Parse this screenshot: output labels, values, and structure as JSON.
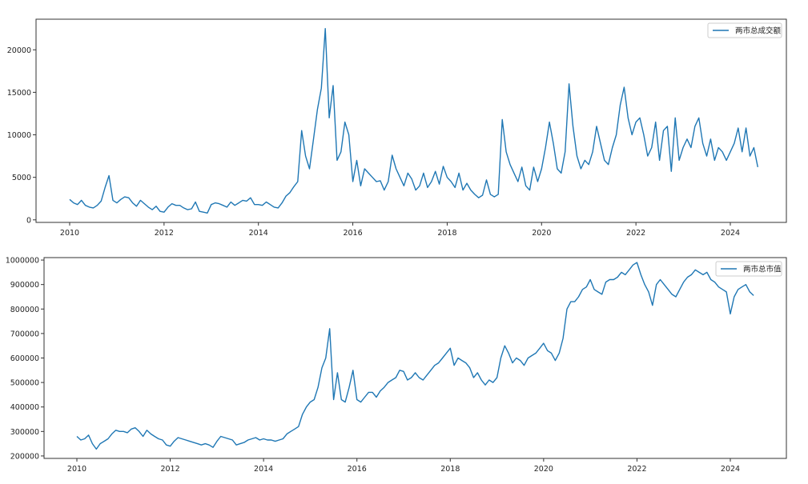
{
  "chart_data": [
    {
      "type": "line",
      "title": "",
      "xlabel": "",
      "ylabel": "",
      "xlim": [
        2009.3,
        2025.2
      ],
      "ylim": [
        -300,
        23600
      ],
      "x_ticks": [
        "2010",
        "2012",
        "2014",
        "2016",
        "2018",
        "2020",
        "2022",
        "2024"
      ],
      "y_ticks": [
        "0",
        "5000",
        "10000",
        "15000",
        "20000"
      ],
      "legend_position": "upper-right",
      "color": "#1f77b4",
      "series": [
        {
          "name": "两市总成交额",
          "x_start": 2010.0,
          "x_step_years": 0.08333,
          "values": [
            2400,
            2000,
            1800,
            2300,
            1700,
            1500,
            1400,
            1700,
            2200,
            3800,
            5200,
            2300,
            2000,
            2400,
            2700,
            2600,
            2000,
            1600,
            2300,
            1900,
            1500,
            1200,
            1600,
            1000,
            900,
            1500,
            1900,
            1700,
            1700,
            1400,
            1200,
            1300,
            2100,
            1000,
            900,
            800,
            1800,
            2000,
            1900,
            1700,
            1500,
            2100,
            1700,
            2000,
            2300,
            2200,
            2600,
            1800,
            1800,
            1700,
            2100,
            1800,
            1500,
            1400,
            2000,
            2800,
            3200,
            3900,
            4500,
            10500,
            7500,
            6000,
            9500,
            13000,
            15500,
            22500,
            12000,
            15800,
            7000,
            8000,
            11500,
            10000,
            4500,
            7000,
            4000,
            6000,
            5500,
            5000,
            4500,
            4600,
            3500,
            4500,
            7600,
            6000,
            5000,
            4000,
            5500,
            4800,
            3500,
            4000,
            5500,
            3800,
            4500,
            5700,
            4200,
            6300,
            5000,
            4500,
            3800,
            5500,
            3500,
            4300,
            3500,
            3000,
            2600,
            2900,
            4700,
            3000,
            2700,
            3000,
            11800,
            8000,
            6500,
            5500,
            4500,
            6200,
            4000,
            3500,
            6200,
            4500,
            6000,
            8500,
            11500,
            9000,
            6000,
            5500,
            8000,
            16000,
            11000,
            7500,
            6000,
            7000,
            6500,
            8000,
            11000,
            9000,
            7000,
            6500,
            8500,
            10000,
            13500,
            15600,
            12000,
            10000,
            11500,
            12000,
            10000,
            7500,
            8500,
            11500,
            7000,
            10500,
            11000,
            5700,
            12000,
            7000,
            8500,
            9500,
            8500,
            11000,
            12000,
            9000,
            7500,
            9500,
            7000,
            8500,
            8000,
            7000,
            8000,
            9000,
            10800,
            8000,
            10800,
            7500,
            8500,
            6200
          ]
        }
      ]
    },
    {
      "type": "line",
      "title": "",
      "xlabel": "",
      "ylabel": "",
      "xlim": [
        2009.3,
        2025.2
      ],
      "ylim": [
        190000,
        1010000
      ],
      "x_ticks": [
        "2010",
        "2012",
        "2014",
        "2016",
        "2018",
        "2020",
        "2022",
        "2024"
      ],
      "y_ticks": [
        "200000",
        "300000",
        "400000",
        "500000",
        "600000",
        "700000",
        "800000",
        "900000",
        "1000000"
      ],
      "legend_position": "upper-right",
      "color": "#1f77b4",
      "series": [
        {
          "name": "两市总市值",
          "x_start": 2010.0,
          "x_step_years": 0.08333,
          "values": [
            280000,
            265000,
            270000,
            285000,
            250000,
            228000,
            250000,
            260000,
            270000,
            290000,
            305000,
            300000,
            300000,
            295000,
            310000,
            315000,
            300000,
            280000,
            305000,
            290000,
            280000,
            270000,
            265000,
            245000,
            240000,
            260000,
            275000,
            270000,
            265000,
            260000,
            255000,
            250000,
            245000,
            250000,
            245000,
            235000,
            260000,
            280000,
            275000,
            270000,
            265000,
            245000,
            250000,
            255000,
            265000,
            270000,
            275000,
            265000,
            270000,
            265000,
            265000,
            260000,
            265000,
            270000,
            290000,
            300000,
            310000,
            320000,
            370000,
            400000,
            420000,
            430000,
            480000,
            560000,
            600000,
            720000,
            430000,
            540000,
            430000,
            420000,
            480000,
            550000,
            430000,
            420000,
            440000,
            460000,
            460000,
            440000,
            465000,
            480000,
            500000,
            510000,
            520000,
            550000,
            545000,
            510000,
            520000,
            540000,
            520000,
            510000,
            530000,
            550000,
            570000,
            580000,
            600000,
            620000,
            640000,
            570000,
            600000,
            590000,
            580000,
            560000,
            520000,
            540000,
            510000,
            490000,
            510000,
            500000,
            520000,
            600000,
            650000,
            620000,
            580000,
            600000,
            590000,
            570000,
            600000,
            610000,
            620000,
            640000,
            660000,
            630000,
            620000,
            590000,
            620000,
            680000,
            800000,
            830000,
            830000,
            850000,
            880000,
            890000,
            920000,
            880000,
            870000,
            860000,
            910000,
            920000,
            920000,
            930000,
            950000,
            940000,
            960000,
            980000,
            990000,
            940000,
            900000,
            870000,
            815000,
            900000,
            920000,
            900000,
            880000,
            860000,
            850000,
            880000,
            910000,
            930000,
            940000,
            960000,
            950000,
            940000,
            950000,
            920000,
            910000,
            890000,
            880000,
            870000,
            780000,
            850000,
            880000,
            890000,
            900000,
            870000,
            855000
          ]
        }
      ]
    }
  ]
}
